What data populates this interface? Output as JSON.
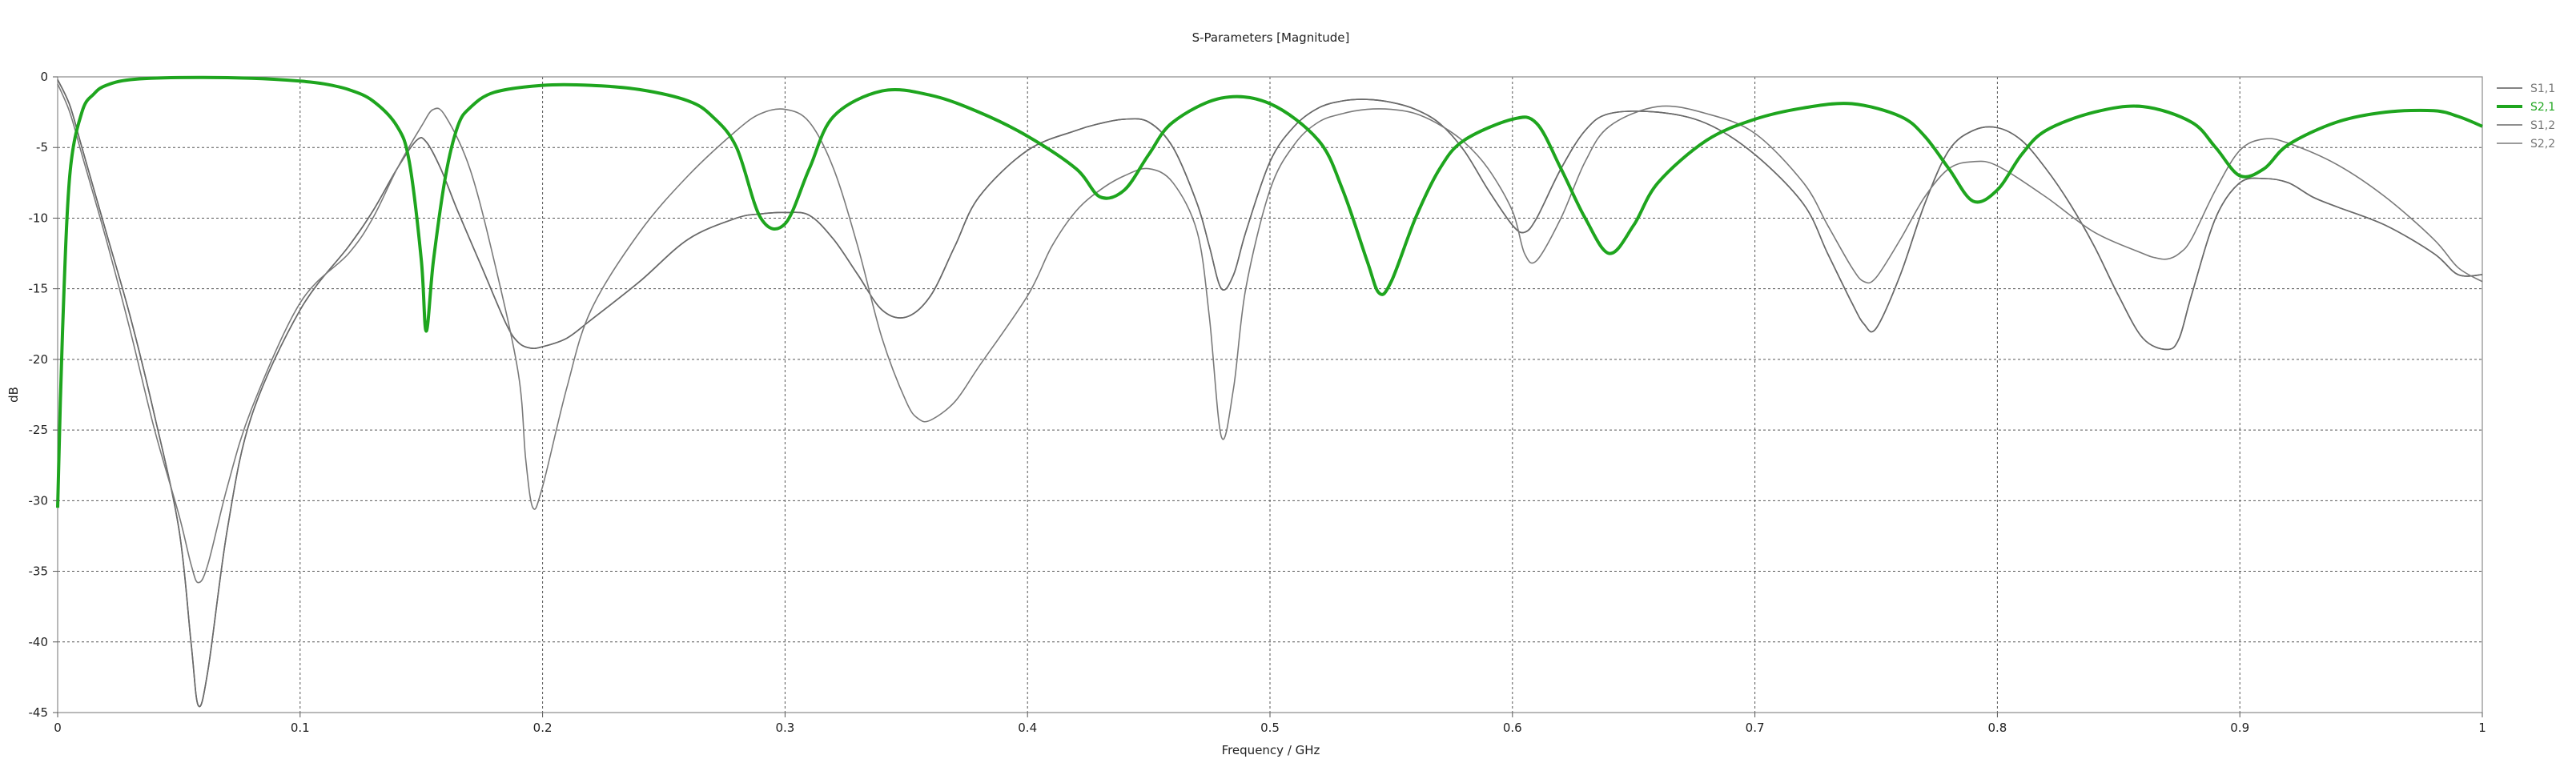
{
  "chart_data": {
    "type": "line",
    "title": "S-Parameters [Magnitude]",
    "xlabel": "Frequency / GHz",
    "ylabel": "dB",
    "xlim": [
      0,
      1
    ],
    "ylim": [
      -45,
      0
    ],
    "xticks": [
      0,
      0.1,
      0.2,
      0.3,
      0.4,
      0.5,
      0.6,
      0.7,
      0.8,
      0.9,
      1
    ],
    "xtick_labels": [
      "0",
      "0.1",
      "0.2",
      "0.3",
      "0.4",
      "0.5",
      "0.6",
      "0.7",
      "0.8",
      "0.9",
      "1"
    ],
    "yticks": [
      0,
      -5,
      -10,
      -15,
      -20,
      -25,
      -30,
      -35,
      -40,
      -45
    ],
    "ytick_labels": [
      "0",
      "-5",
      "-10",
      "-15",
      "-20",
      "-25",
      "-30",
      "-35",
      "-40",
      "-45"
    ],
    "grid": true,
    "legend_position": "right",
    "series": [
      {
        "name": "S1,1",
        "color": "#5a5a5a",
        "highlight": false,
        "x": [
          0,
          0.005,
          0.01,
          0.02,
          0.03,
          0.04,
          0.05,
          0.055,
          0.058,
          0.062,
          0.07,
          0.08,
          0.1,
          0.12,
          0.13,
          0.14,
          0.148,
          0.152,
          0.158,
          0.165,
          0.175,
          0.185,
          0.19,
          0.195,
          0.2,
          0.21,
          0.22,
          0.24,
          0.26,
          0.28,
          0.29,
          0.3,
          0.31,
          0.32,
          0.33,
          0.34,
          0.35,
          0.36,
          0.37,
          0.38,
          0.4,
          0.42,
          0.43,
          0.44,
          0.45,
          0.46,
          0.47,
          0.475,
          0.48,
          0.485,
          0.49,
          0.5,
          0.51,
          0.52,
          0.53,
          0.54,
          0.55,
          0.56,
          0.57,
          0.58,
          0.59,
          0.6,
          0.605,
          0.61,
          0.62,
          0.63,
          0.64,
          0.66,
          0.68,
          0.7,
          0.72,
          0.73,
          0.74,
          0.745,
          0.75,
          0.76,
          0.77,
          0.78,
          0.79,
          0.8,
          0.81,
          0.82,
          0.83,
          0.84,
          0.85,
          0.86,
          0.87,
          0.875,
          0.88,
          0.89,
          0.9,
          0.91,
          0.92,
          0.93,
          0.94,
          0.96,
          0.98,
          0.99,
          1
        ],
        "y": [
          -0.2,
          -2,
          -5,
          -11,
          -17,
          -24,
          -32,
          -40,
          -44.5,
          -42,
          -32,
          -24,
          -16.5,
          -12,
          -9.5,
          -6.5,
          -4.5,
          -4.6,
          -6.5,
          -9.5,
          -13.5,
          -17.5,
          -18.8,
          -19.2,
          -19.1,
          -18.5,
          -17.2,
          -14.5,
          -11.5,
          -10.0,
          -9.7,
          -9.6,
          -9.8,
          -11.5,
          -14,
          -16.5,
          -17,
          -15.5,
          -12,
          -8.5,
          -5.2,
          -3.8,
          -3.3,
          -3.0,
          -3.2,
          -5,
          -9,
          -12,
          -15,
          -14,
          -11,
          -6,
          -3.5,
          -2.2,
          -1.7,
          -1.6,
          -1.8,
          -2.3,
          -3.3,
          -5.2,
          -8,
          -10.5,
          -11,
          -10,
          -6.5,
          -3.8,
          -2.6,
          -2.5,
          -3.3,
          -5.5,
          -9,
          -12.5,
          -16,
          -17.5,
          -17.8,
          -14,
          -9,
          -5.2,
          -3.8,
          -3.6,
          -4.5,
          -6.5,
          -9,
          -12,
          -15.5,
          -18.5,
          -19.3,
          -18.5,
          -15.5,
          -10,
          -7.5,
          -7.2,
          -7.5,
          -8.5,
          -9.2,
          -10.5,
          -12.5,
          -14,
          -14
        ]
      },
      {
        "name": "S2,1",
        "color": "#1ea51e",
        "highlight": true,
        "x": [
          0,
          0.002,
          0.005,
          0.01,
          0.015,
          0.02,
          0.03,
          0.05,
          0.08,
          0.1,
          0.11,
          0.12,
          0.13,
          0.14,
          0.145,
          0.15,
          0.152,
          0.155,
          0.16,
          0.165,
          0.17,
          0.18,
          0.2,
          0.22,
          0.24,
          0.26,
          0.27,
          0.28,
          0.29,
          0.3,
          0.31,
          0.32,
          0.34,
          0.36,
          0.38,
          0.4,
          0.42,
          0.43,
          0.44,
          0.45,
          0.46,
          0.48,
          0.5,
          0.52,
          0.53,
          0.54,
          0.545,
          0.55,
          0.56,
          0.57,
          0.58,
          0.6,
          0.61,
          0.62,
          0.63,
          0.64,
          0.65,
          0.66,
          0.68,
          0.7,
          0.72,
          0.74,
          0.76,
          0.77,
          0.78,
          0.79,
          0.8,
          0.81,
          0.82,
          0.84,
          0.86,
          0.88,
          0.89,
          0.9,
          0.91,
          0.92,
          0.94,
          0.96,
          0.98,
          0.99,
          1
        ],
        "y": [
          -30.5,
          -18,
          -7,
          -2.5,
          -1.2,
          -0.6,
          -0.2,
          -0.05,
          -0.1,
          -0.3,
          -0.5,
          -0.9,
          -1.7,
          -3.5,
          -6,
          -13,
          -18,
          -13,
          -7,
          -3.5,
          -2.2,
          -1.1,
          -0.6,
          -0.6,
          -0.9,
          -1.7,
          -2.8,
          -5,
          -10,
          -10.4,
          -6.5,
          -2.8,
          -1.0,
          -1.3,
          -2.5,
          -4.2,
          -6.5,
          -8.5,
          -8,
          -5.5,
          -3.2,
          -1.5,
          -1.9,
          -4.5,
          -8,
          -13,
          -15.3,
          -14.5,
          -10,
          -6.5,
          -4.5,
          -3.0,
          -3.3,
          -6.5,
          -10,
          -12.5,
          -10.5,
          -7.5,
          -4.5,
          -3.0,
          -2.2,
          -1.9,
          -2.8,
          -4.2,
          -6.5,
          -8.8,
          -8,
          -5.5,
          -3.8,
          -2.5,
          -2.1,
          -3.2,
          -5,
          -7.0,
          -6.5,
          -4.8,
          -3.2,
          -2.5,
          -2.4,
          -2.8,
          -3.5
        ]
      },
      {
        "name": "S1,2",
        "color": "#6a6a6a",
        "highlight": false,
        "x": [
          0,
          0.005,
          0.01,
          0.02,
          0.03,
          0.04,
          0.05,
          0.055,
          0.058,
          0.062,
          0.07,
          0.08,
          0.1,
          0.12,
          0.13,
          0.14,
          0.148,
          0.152,
          0.158,
          0.165,
          0.175,
          0.185,
          0.19,
          0.195,
          0.2,
          0.21,
          0.22,
          0.24,
          0.26,
          0.28,
          0.29,
          0.3,
          0.31,
          0.32,
          0.33,
          0.34,
          0.35,
          0.36,
          0.37,
          0.38,
          0.4,
          0.42,
          0.43,
          0.44,
          0.45,
          0.46,
          0.47,
          0.475,
          0.48,
          0.485,
          0.49,
          0.5,
          0.51,
          0.52,
          0.53,
          0.54,
          0.55,
          0.56,
          0.57,
          0.58,
          0.59,
          0.6,
          0.605,
          0.61,
          0.62,
          0.63,
          0.64,
          0.66,
          0.68,
          0.7,
          0.72,
          0.73,
          0.74,
          0.745,
          0.75,
          0.76,
          0.77,
          0.78,
          0.79,
          0.8,
          0.81,
          0.82,
          0.83,
          0.84,
          0.85,
          0.86,
          0.87,
          0.875,
          0.88,
          0.89,
          0.9,
          0.91,
          0.92,
          0.93,
          0.94,
          0.96,
          0.98,
          0.99,
          1
        ],
        "y": [
          -0.2,
          -2,
          -5,
          -11,
          -17,
          -24,
          -32,
          -40,
          -44.5,
          -42,
          -32,
          -24,
          -16.5,
          -12,
          -9.5,
          -6.5,
          -4.5,
          -4.6,
          -6.5,
          -9.5,
          -13.5,
          -17.5,
          -18.8,
          -19.2,
          -19.1,
          -18.5,
          -17.2,
          -14.5,
          -11.5,
          -10.0,
          -9.7,
          -9.6,
          -9.8,
          -11.5,
          -14,
          -16.5,
          -17,
          -15.5,
          -12,
          -8.5,
          -5.2,
          -3.8,
          -3.3,
          -3.0,
          -3.2,
          -5,
          -9,
          -12,
          -15,
          -14,
          -11,
          -6,
          -3.5,
          -2.2,
          -1.7,
          -1.6,
          -1.8,
          -2.3,
          -3.3,
          -5.2,
          -8,
          -10.5,
          -11,
          -10,
          -6.5,
          -3.8,
          -2.6,
          -2.5,
          -3.3,
          -5.5,
          -9,
          -12.5,
          -16,
          -17.5,
          -17.8,
          -14,
          -9,
          -5.2,
          -3.8,
          -3.6,
          -4.5,
          -6.5,
          -9,
          -12,
          -15.5,
          -18.5,
          -19.3,
          -18.5,
          -15.5,
          -10,
          -7.5,
          -7.2,
          -7.5,
          -8.5,
          -9.2,
          -10.5,
          -12.5,
          -14,
          -14
        ]
      },
      {
        "name": "S2,2",
        "color": "#7a7a7a",
        "highlight": false,
        "x": [
          0,
          0.005,
          0.01,
          0.02,
          0.03,
          0.04,
          0.05,
          0.055,
          0.058,
          0.062,
          0.07,
          0.08,
          0.1,
          0.12,
          0.13,
          0.14,
          0.15,
          0.155,
          0.16,
          0.17,
          0.18,
          0.19,
          0.193,
          0.196,
          0.2,
          0.21,
          0.22,
          0.24,
          0.26,
          0.28,
          0.29,
          0.3,
          0.31,
          0.32,
          0.33,
          0.34,
          0.35,
          0.355,
          0.36,
          0.37,
          0.38,
          0.4,
          0.41,
          0.42,
          0.43,
          0.44,
          0.45,
          0.46,
          0.47,
          0.475,
          0.48,
          0.485,
          0.49,
          0.5,
          0.51,
          0.52,
          0.53,
          0.54,
          0.55,
          0.56,
          0.57,
          0.58,
          0.59,
          0.6,
          0.605,
          0.61,
          0.62,
          0.63,
          0.64,
          0.66,
          0.68,
          0.7,
          0.72,
          0.73,
          0.74,
          0.745,
          0.75,
          0.76,
          0.77,
          0.78,
          0.79,
          0.8,
          0.82,
          0.84,
          0.86,
          0.865,
          0.87,
          0.875,
          0.88,
          0.89,
          0.9,
          0.91,
          0.92,
          0.94,
          0.96,
          0.98,
          0.99,
          1
        ],
        "y": [
          -0.5,
          -2.5,
          -5.5,
          -11.5,
          -18,
          -25,
          -31,
          -34.5,
          -35.8,
          -34.5,
          -29,
          -23.5,
          -16,
          -12.5,
          -10,
          -6.5,
          -3.5,
          -2.3,
          -2.8,
          -6.5,
          -13,
          -21,
          -27,
          -30.5,
          -29,
          -22,
          -16.5,
          -11,
          -7,
          -3.8,
          -2.6,
          -2.3,
          -3.2,
          -6.5,
          -12,
          -18.5,
          -23,
          -24.2,
          -24.3,
          -23,
          -20.5,
          -15.5,
          -12,
          -9.5,
          -8,
          -7,
          -6.5,
          -7.5,
          -11,
          -17,
          -25.5,
          -22,
          -15,
          -8,
          -4.8,
          -3.2,
          -2.6,
          -2.3,
          -2.3,
          -2.6,
          -3.4,
          -4.6,
          -6.5,
          -9.5,
          -12.5,
          -13,
          -10,
          -6,
          -3.5,
          -2.1,
          -2.6,
          -4,
          -7.5,
          -10.5,
          -13.5,
          -14.5,
          -14.2,
          -11.5,
          -8.5,
          -6.5,
          -6.0,
          -6.3,
          -8.5,
          -11,
          -12.5,
          -12.8,
          -12.9,
          -12.5,
          -11.5,
          -8,
          -5.2,
          -4.4,
          -4.7,
          -6.2,
          -8.5,
          -11.5,
          -13.5,
          -14.5
        ]
      }
    ]
  }
}
